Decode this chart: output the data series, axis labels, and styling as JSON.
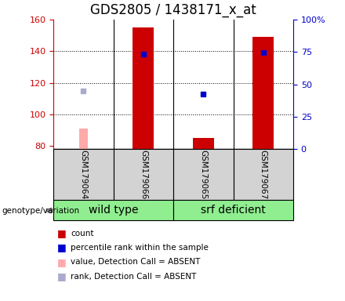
{
  "title": "GDS2805 / 1438171_x_at",
  "samples": [
    "GSM179064",
    "GSM179066",
    "GSM179065",
    "GSM179067"
  ],
  "ylim_left": [
    78,
    160
  ],
  "ylim_right": [
    0,
    100
  ],
  "yticks_left": [
    80,
    100,
    120,
    140,
    160
  ],
  "yticks_right": [
    0,
    25,
    50,
    75,
    100
  ],
  "yticklabels_right": [
    "0",
    "25",
    "50",
    "75",
    "100%"
  ],
  "count_values": [
    null,
    155,
    85,
    149
  ],
  "absent_value_heights": [
    91,
    null,
    null,
    null
  ],
  "absent_rank_values": [
    115,
    null,
    null,
    null
  ],
  "rank_values": [
    null,
    138,
    113,
    139
  ],
  "absent_value_color": "#ffaaaa",
  "absent_rank_color": "#aaaacc",
  "present_rank_color": "#0000cc",
  "red_bar_color": "#cc0000",
  "bar_width": 0.35,
  "absent_bar_width": 0.15,
  "left_axis_color": "#cc0000",
  "right_axis_color": "#0000cc",
  "title_fontsize": 12,
  "tick_fontsize": 8,
  "sample_bg": "#d3d3d3",
  "group_color": "#90ee90",
  "group_label_fontsize": 10,
  "legend_items": [
    {
      "color": "#cc0000",
      "label": "count"
    },
    {
      "color": "#0000cc",
      "label": "percentile rank within the sample"
    },
    {
      "color": "#ffaaaa",
      "label": "value, Detection Call = ABSENT"
    },
    {
      "color": "#aaaacc",
      "label": "rank, Detection Call = ABSENT"
    }
  ]
}
